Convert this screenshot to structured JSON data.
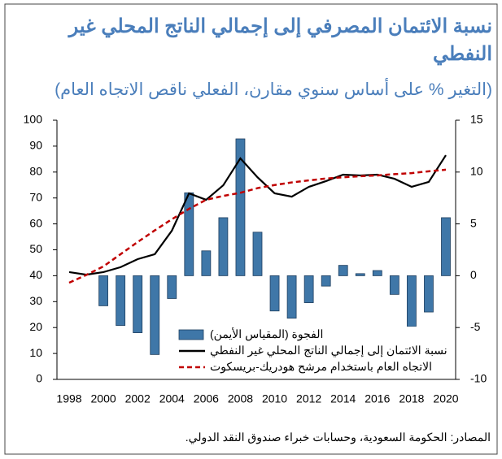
{
  "chart_data": {
    "type": "combo",
    "title": "نسبة الائتمان المصرفي إلى إجمالي الناتج المحلي غير النفطي",
    "subtitle": "(التغير % على أساس سنوي مقارن، الفعلي ناقص الاتجاه العام)",
    "source": "المصادر: الحكومة السعودية، وحسابات خبراء صندوق النقد الدولي.",
    "categories": [
      "1998",
      null,
      "2000",
      null,
      "2002",
      null,
      "2004",
      null,
      "2006",
      null,
      "2008",
      null,
      "2010",
      null,
      "2012",
      null,
      "2014",
      null,
      "2016",
      null,
      "2018",
      null,
      "2020"
    ],
    "series": [
      {
        "name": "الفجوة (المقياس الأيمن)",
        "type": "bar",
        "axis": "y2",
        "color": "#3f77a8",
        "values": [
          null,
          null,
          -2.9,
          -4.8,
          -5.5,
          -7.6,
          -2.2,
          8.0,
          2.4,
          5.6,
          13.2,
          4.2,
          -3.4,
          -4.1,
          -2.6,
          -1.0,
          1.0,
          0.2,
          0.5,
          -1.8,
          -4.9,
          -3.5,
          5.6
        ]
      },
      {
        "name": "نسبة الائتمان إلى إجمالي الناتج المحلي غير النفطي",
        "type": "line",
        "color": "#000000",
        "values": [
          41.4,
          40.4,
          41.4,
          43.3,
          46.4,
          48.3,
          57.4,
          71.8,
          69.3,
          74.9,
          85.3,
          78,
          71.8,
          70.5,
          74.3,
          76.5,
          79,
          78.7,
          79,
          77.4,
          74.3,
          76.2,
          86.5
        ]
      },
      {
        "name": "الاتجاه العام باستخدام مرشح هودريك-بريسكوت",
        "type": "line",
        "dashed": true,
        "color": "#c00000",
        "values": [
          37.3,
          40.3,
          43.6,
          48.3,
          53,
          57.5,
          61.8,
          65.8,
          69.3,
          70.8,
          72,
          73.8,
          75,
          76,
          76.8,
          77.5,
          78,
          78.4,
          78.7,
          79.2,
          79.6,
          80.3,
          80.9
        ]
      }
    ],
    "ylim": [
      0,
      100
    ],
    "yticks": [
      0,
      10,
      20,
      30,
      40,
      50,
      60,
      70,
      80,
      90,
      100
    ],
    "y2lim": [
      -10,
      15
    ],
    "y2ticks": [
      -10,
      -5,
      0,
      5,
      10,
      15
    ]
  }
}
